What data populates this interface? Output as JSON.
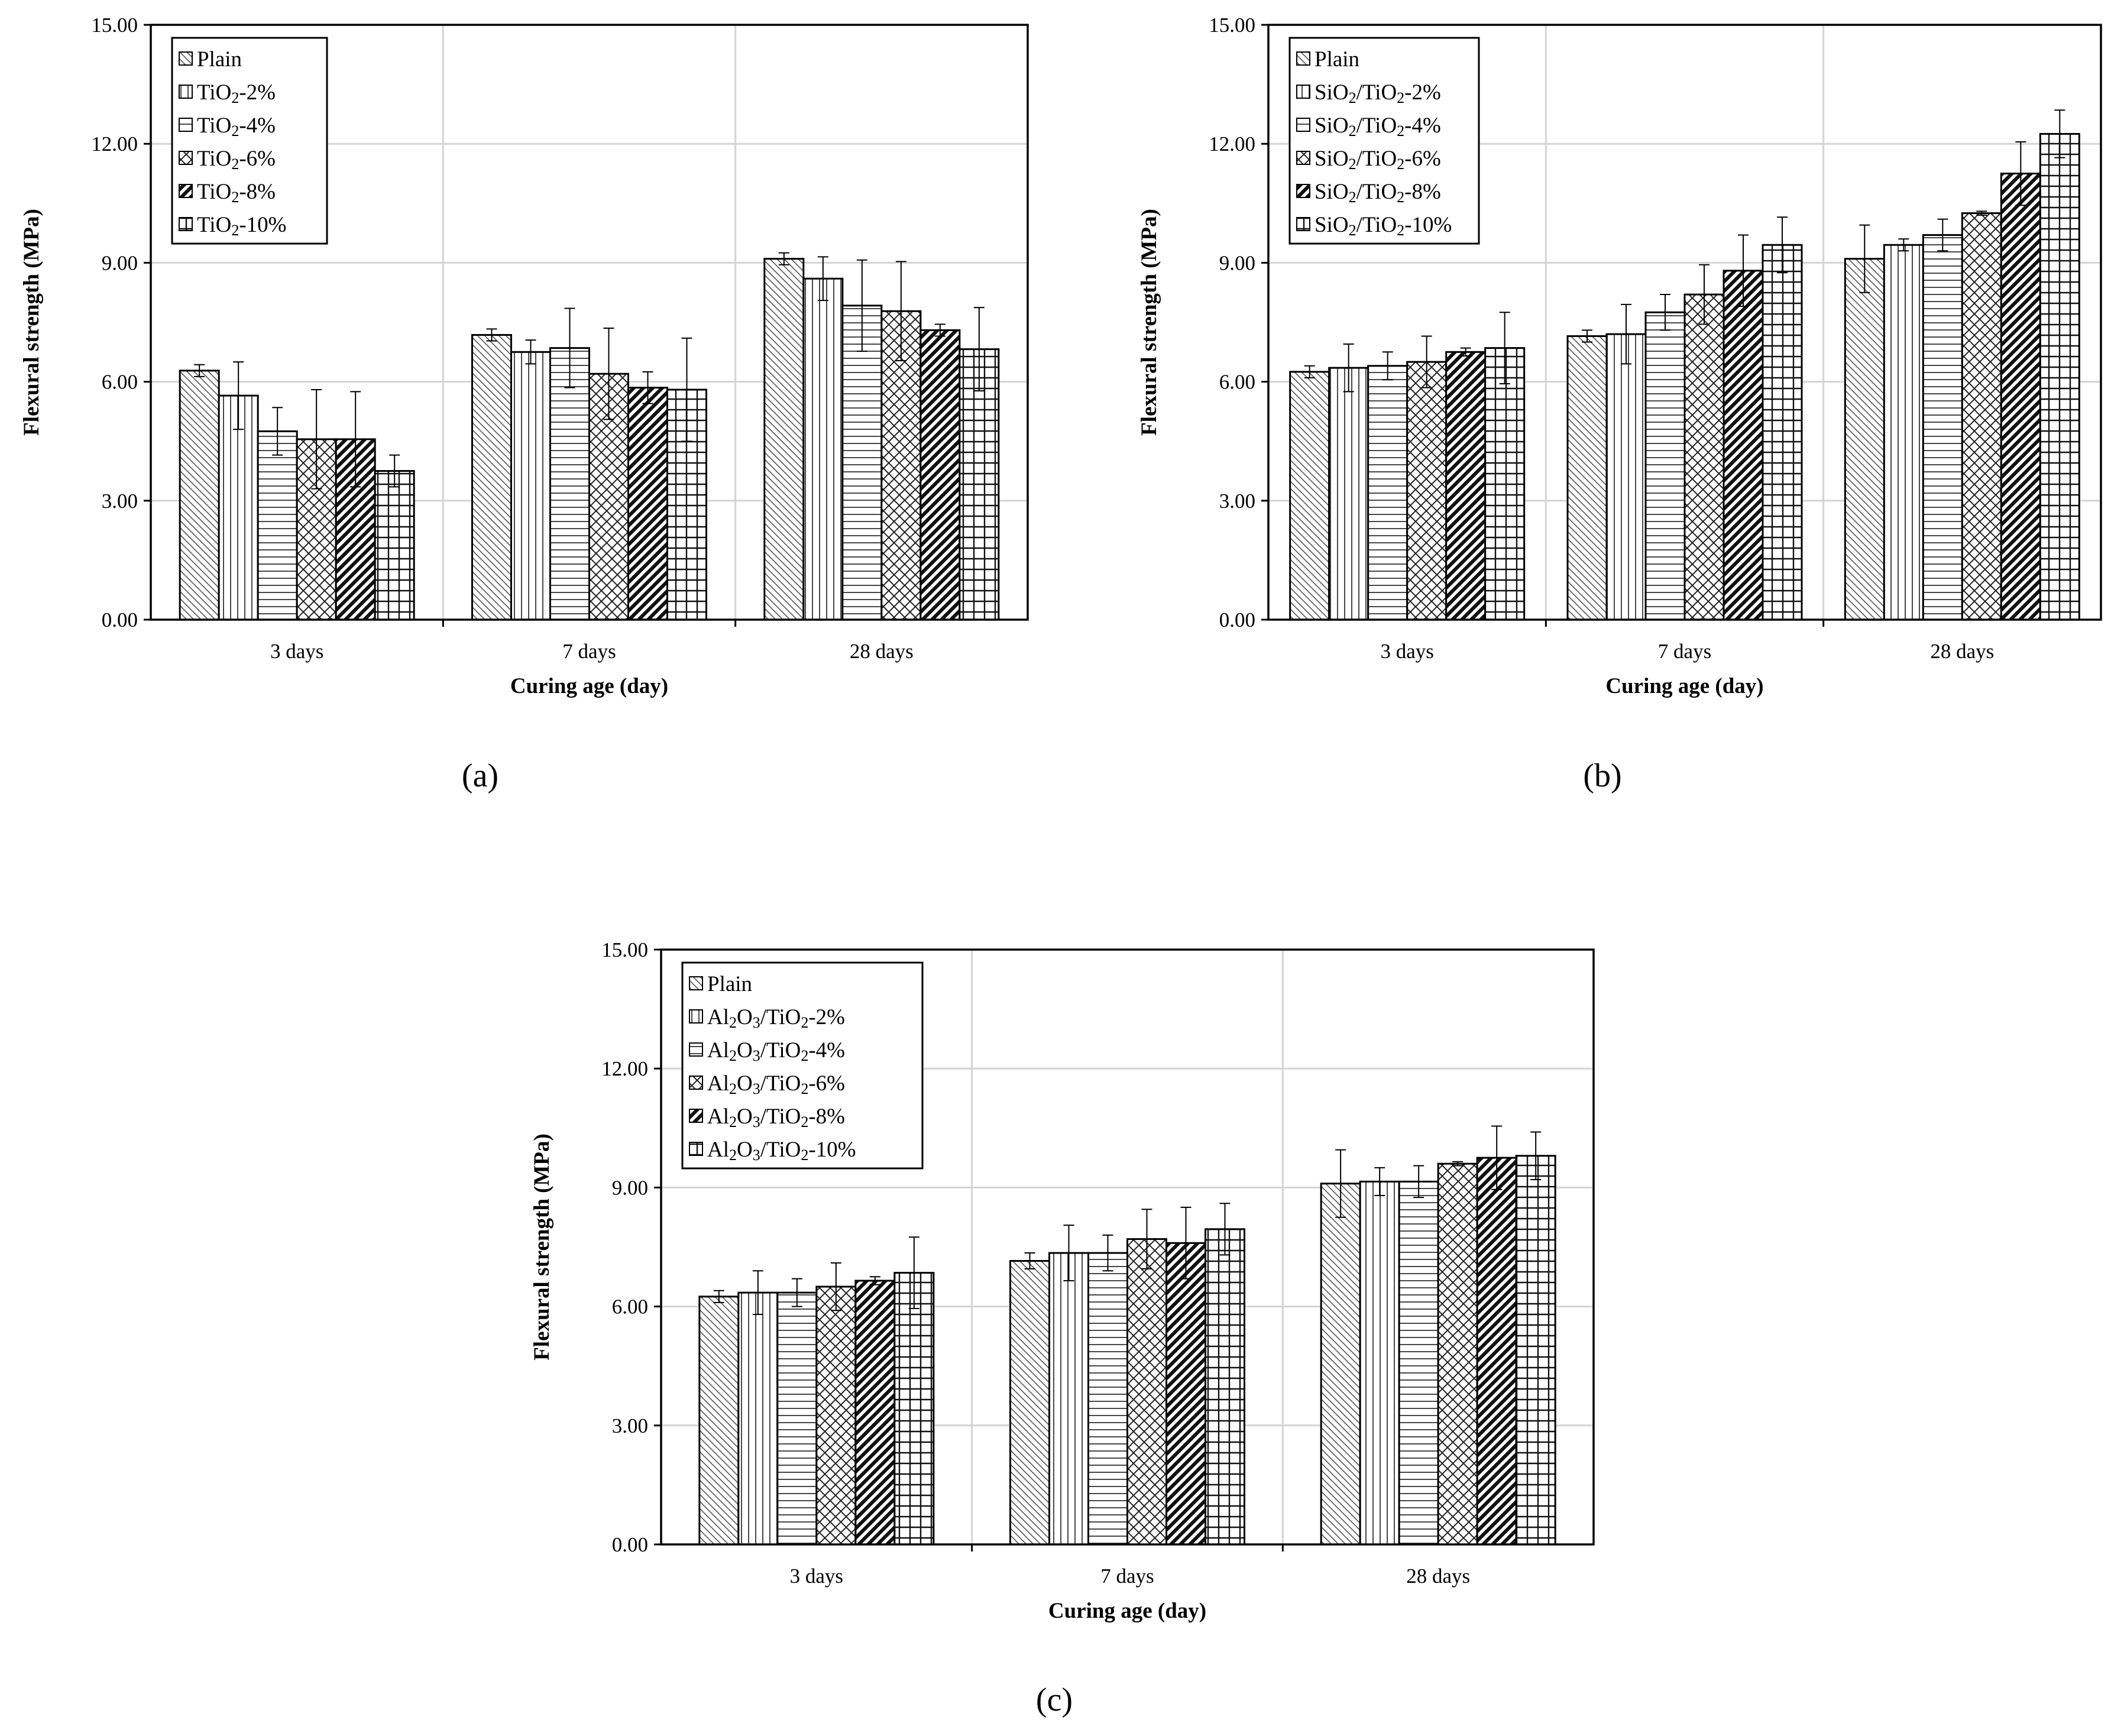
{
  "chart_data": [
    {
      "type": "bar",
      "panel_label": "a",
      "categories": [
        "3 days",
        "7 days",
        "28 days"
      ],
      "series": [
        {
          "name": "Plain",
          "pattern": "diag",
          "values": [
            6.28,
            7.18,
            9.1
          ],
          "errors": [
            0.15,
            0.15,
            0.15
          ]
        },
        {
          "name": "TiO",
          "sub": "2",
          "suffix": "-2%",
          "pattern": "vert",
          "values": [
            5.65,
            6.75,
            8.6
          ],
          "errors": [
            0.85,
            0.3,
            0.55
          ]
        },
        {
          "name": "TiO",
          "sub": "2",
          "suffix": "-4%",
          "pattern": "horiz",
          "values": [
            4.75,
            6.85,
            7.92
          ],
          "errors": [
            0.6,
            1.0,
            1.15
          ]
        },
        {
          "name": "TiO",
          "sub": "2",
          "suffix": "-6%",
          "pattern": "cross",
          "values": [
            4.55,
            6.2,
            7.78
          ],
          "errors": [
            1.25,
            1.15,
            1.25
          ]
        },
        {
          "name": "TiO",
          "sub": "2",
          "suffix": "-8%",
          "pattern": "thick",
          "values": [
            4.55,
            5.85,
            7.3
          ],
          "errors": [
            1.2,
            0.4,
            0.15
          ]
        },
        {
          "name": "TiO",
          "sub": "2",
          "suffix": "-10%",
          "pattern": "grid",
          "values": [
            3.75,
            5.8,
            6.82
          ],
          "errors": [
            0.4,
            1.3,
            1.05
          ]
        }
      ],
      "xlabel": "Curing age (day)",
      "ylabel": "Flexural strength (MPa)",
      "ylim": [
        0,
        15
      ],
      "yticks": [
        "0.00",
        "3.00",
        "6.00",
        "9.00",
        "12.00",
        "15.00"
      ],
      "grid": true,
      "legend": "top-left"
    },
    {
      "type": "bar",
      "panel_label": "b",
      "categories": [
        "3 days",
        "7 days",
        "28 days"
      ],
      "series": [
        {
          "name": "Plain",
          "pattern": "diag",
          "values": [
            6.25,
            7.15,
            9.1
          ],
          "errors": [
            0.15,
            0.15,
            0.85
          ]
        },
        {
          "name": "SiO",
          "sub": "2",
          "mid": "/TiO",
          "sub2": "2",
          "suffix": "-2%",
          "pattern": "vert",
          "values": [
            6.35,
            7.2,
            9.45
          ],
          "errors": [
            0.6,
            0.75,
            0.15
          ]
        },
        {
          "name": "SiO",
          "sub": "2",
          "mid": "/TiO",
          "sub2": "2",
          "suffix": "-4%",
          "pattern": "horiz",
          "values": [
            6.4,
            7.75,
            9.7
          ],
          "errors": [
            0.35,
            0.45,
            0.4
          ]
        },
        {
          "name": "SiO",
          "sub": "2",
          "mid": "/TiO",
          "sub2": "2",
          "suffix": "-6%",
          "pattern": "cross",
          "values": [
            6.5,
            8.2,
            10.25
          ],
          "errors": [
            0.65,
            0.75,
            0.05
          ]
        },
        {
          "name": "SiO",
          "sub": "2",
          "mid": "/TiO",
          "sub2": "2",
          "suffix": "-8%",
          "pattern": "thick",
          "values": [
            6.75,
            8.8,
            11.25
          ],
          "errors": [
            0.1,
            0.9,
            0.8
          ]
        },
        {
          "name": "SiO",
          "sub": "2",
          "mid": "/TiO",
          "sub2": "2",
          "suffix": "-10%",
          "pattern": "grid",
          "values": [
            6.85,
            9.45,
            12.25
          ],
          "errors": [
            0.9,
            0.7,
            0.6
          ]
        }
      ],
      "xlabel": "Curing age (day)",
      "ylabel": "Flexural strength (MPa)",
      "ylim": [
        0,
        15
      ],
      "yticks": [
        "0.00",
        "3.00",
        "6.00",
        "9.00",
        "12.00",
        "15.00"
      ],
      "grid": true,
      "legend": "top-left"
    },
    {
      "type": "bar",
      "panel_label": "c",
      "categories": [
        "3 days",
        "7 days",
        "28 days"
      ],
      "series": [
        {
          "name": "Plain",
          "pattern": "diag",
          "values": [
            6.25,
            7.15,
            9.1
          ],
          "errors": [
            0.15,
            0.2,
            0.85
          ]
        },
        {
          "name": "Al",
          "sub": "2",
          "mid": "O",
          "sub2": "3",
          "mid2": "/TiO",
          "sub3": "2",
          "suffix": "-2%",
          "pattern": "vert",
          "values": [
            6.35,
            7.35,
            9.15
          ],
          "errors": [
            0.55,
            0.7,
            0.35
          ]
        },
        {
          "name": "Al",
          "sub": "2",
          "mid": "O",
          "sub2": "3",
          "mid2": "/TiO",
          "sub3": "2",
          "suffix": "-4%",
          "pattern": "horiz",
          "values": [
            6.35,
            7.35,
            9.15
          ],
          "errors": [
            0.35,
            0.45,
            0.4
          ]
        },
        {
          "name": "Al",
          "sub": "2",
          "mid": "O",
          "sub2": "3",
          "mid2": "/TiO",
          "sub3": "2",
          "suffix": "-6%",
          "pattern": "cross",
          "values": [
            6.5,
            7.7,
            9.6
          ],
          "errors": [
            0.6,
            0.75,
            0.05
          ]
        },
        {
          "name": "Al",
          "sub": "2",
          "mid": "O",
          "sub2": "3",
          "mid2": "/TiO",
          "sub3": "2",
          "suffix": "-8%",
          "pattern": "thick",
          "values": [
            6.65,
            7.6,
            9.75
          ],
          "errors": [
            0.1,
            0.9,
            0.8
          ]
        },
        {
          "name": "Al",
          "sub": "2",
          "mid": "O",
          "sub2": "3",
          "mid2": "/TiO",
          "sub3": "2",
          "suffix": "-10%",
          "pattern": "grid",
          "values": [
            6.85,
            7.95,
            9.8
          ],
          "errors": [
            0.9,
            0.65,
            0.6
          ]
        }
      ],
      "xlabel": "Curing age (day)",
      "ylabel": "Flexural strength (MPa)",
      "ylim": [
        0,
        15
      ],
      "yticks": [
        "0.00",
        "3.00",
        "6.00",
        "9.00",
        "12.00",
        "15.00"
      ],
      "grid": true,
      "legend": "top-left"
    }
  ],
  "captions": [
    "(a)",
    "(b)",
    "(c)"
  ]
}
